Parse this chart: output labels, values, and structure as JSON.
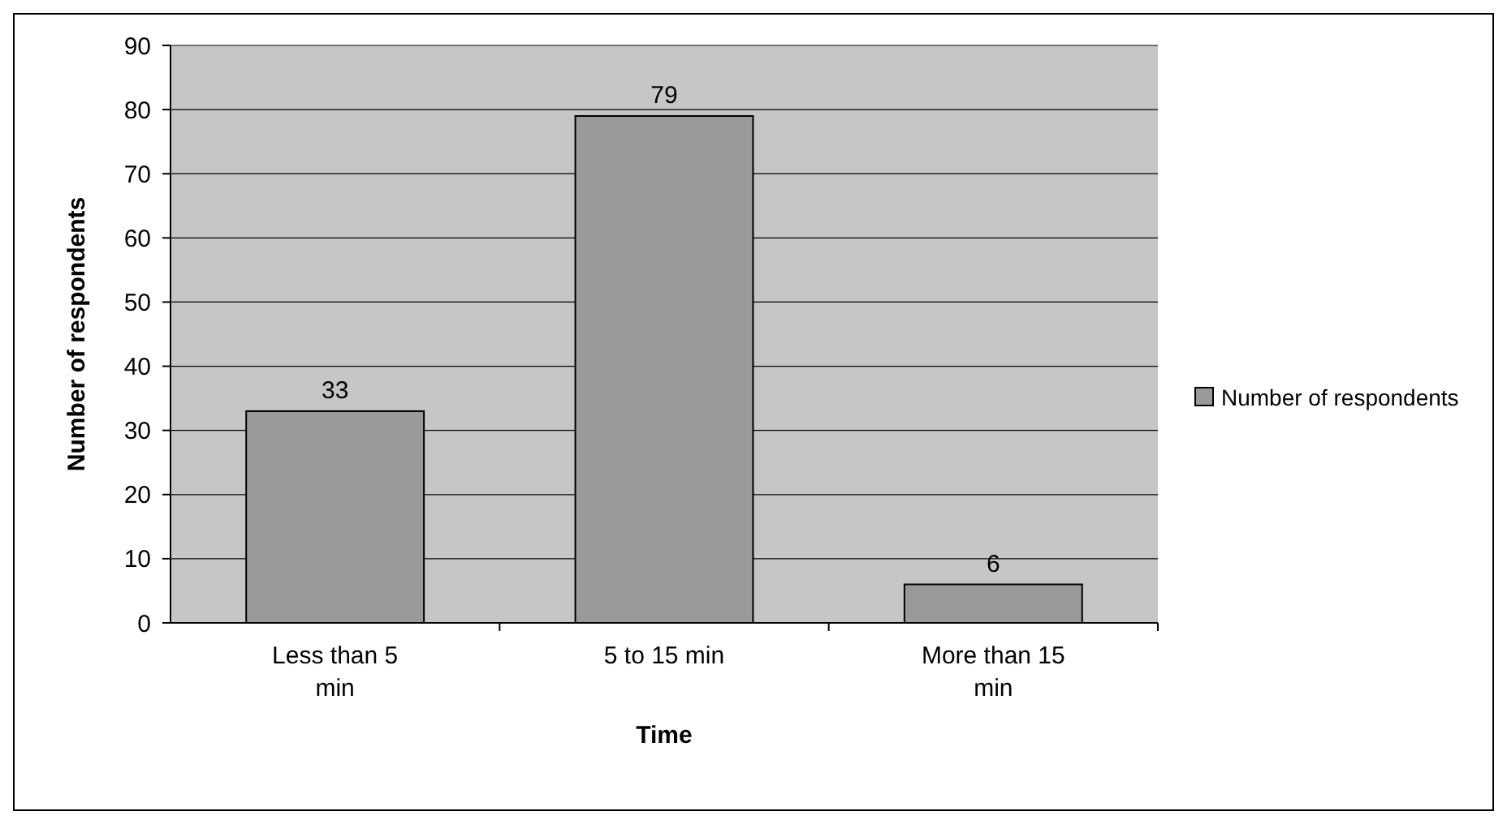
{
  "chart_data": {
    "type": "bar",
    "xlabel": "Time",
    "ylabel": "Number of respondents",
    "categories": [
      "Less than 5 min",
      "5 to 15 min",
      "More than 15 min"
    ],
    "series": [
      {
        "name": "Number of respondents",
        "color": "#9a9a9a",
        "values": [
          33,
          79,
          6
        ]
      }
    ],
    "ylim": [
      0,
      90
    ],
    "yticks": [
      0,
      10,
      20,
      30,
      40,
      50,
      60,
      70,
      80,
      90
    ],
    "grid": "y",
    "data_labels": true,
    "legend": "right"
  }
}
